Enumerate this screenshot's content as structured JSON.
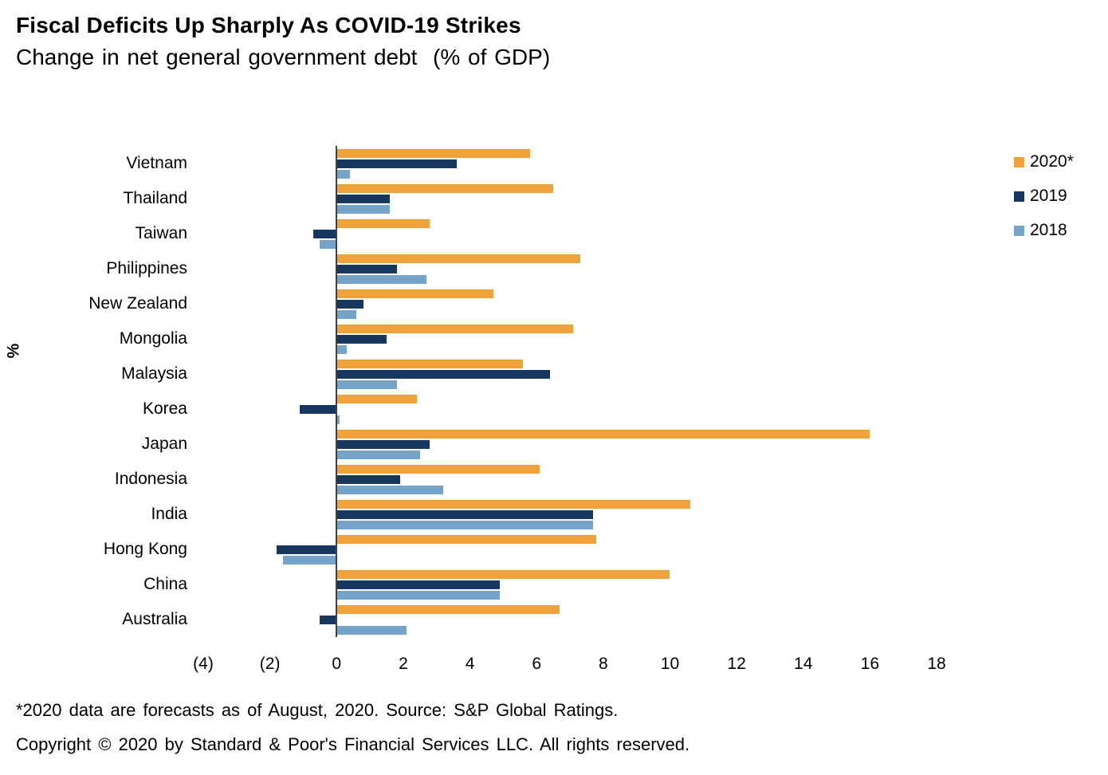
{
  "title": "Fiscal Deficits Up Sharply As COVID-19 Strikes",
  "subtitle": "Change in net general government debt  (% of GDP)",
  "footnotes": {
    "source": "*2020 data are forecasts as of August, 2020. Source: S&P Global Ratings.",
    "copyright": "Copyright © 2020 by Standard & Poor's Financial Services LLC. All rights reserved."
  },
  "chart_data": {
    "type": "bar",
    "orientation": "horizontal",
    "title": "Fiscal Deficits Up Sharply As COVID-19 Strikes",
    "subtitle": "Change in net general government debt (% of GDP)",
    "ylabel": "%",
    "xlim": [
      -4,
      18
    ],
    "xticks": [
      -4,
      -2,
      0,
      2,
      4,
      6,
      8,
      10,
      12,
      14,
      16,
      18
    ],
    "xtick_labels": [
      "(4)",
      "(2)",
      "0",
      "2",
      "4",
      "6",
      "8",
      "10",
      "12",
      "14",
      "16",
      "18"
    ],
    "grid": false,
    "legend_position": "top-right",
    "categories": [
      "Vietnam",
      "Thailand",
      "Taiwan",
      "Philippines",
      "New Zealand",
      "Mongolia",
      "Malaysia",
      "Korea",
      "Japan",
      "Indonesia",
      "India",
      "Hong Kong",
      "China",
      "Australia"
    ],
    "series": [
      {
        "name": "2020*",
        "color": "#F0A33C",
        "values": [
          5.8,
          6.5,
          2.8,
          7.3,
          4.7,
          7.1,
          5.6,
          2.4,
          16.0,
          6.1,
          10.6,
          7.8,
          10.0,
          6.7
        ]
      },
      {
        "name": "2019",
        "color": "#17375E",
        "values": [
          3.6,
          1.6,
          -0.7,
          1.8,
          0.8,
          1.5,
          6.4,
          -1.1,
          2.8,
          1.9,
          7.7,
          -1.8,
          4.9,
          -0.5
        ]
      },
      {
        "name": "2018",
        "color": "#75A3C9",
        "values": [
          0.4,
          1.6,
          -0.5,
          2.7,
          0.6,
          0.3,
          1.8,
          0.1,
          2.5,
          3.2,
          7.7,
          -1.6,
          4.9,
          2.1
        ]
      }
    ]
  }
}
